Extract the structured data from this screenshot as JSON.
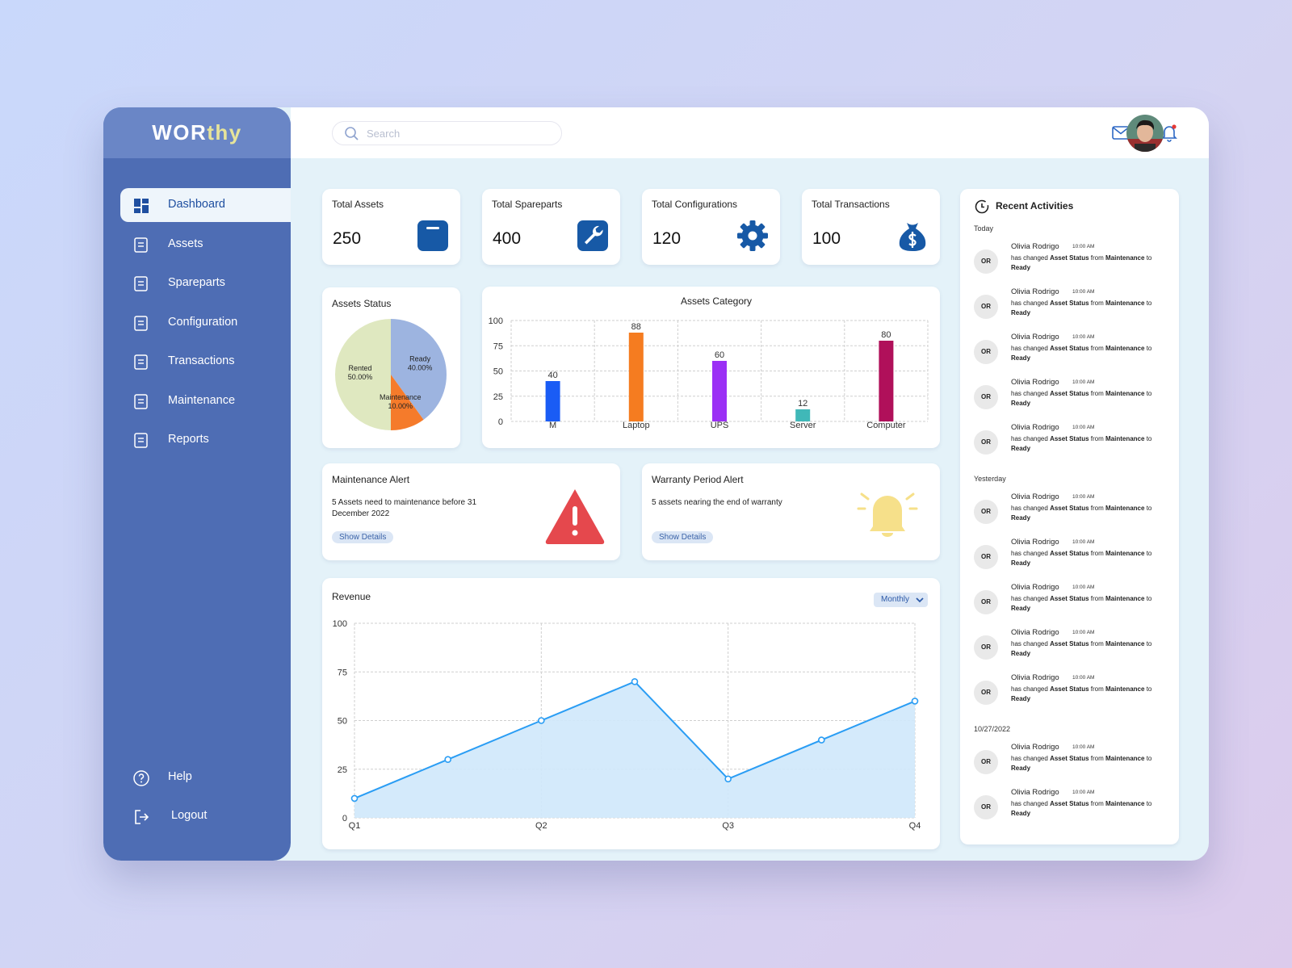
{
  "brand": {
    "main": "WOR",
    "accent": "thy"
  },
  "search_placeholder": "Search",
  "nav": {
    "active": 0,
    "main": [
      "Dashboard",
      "Assets",
      "Spareparts",
      "Configuration",
      "Transactions",
      "Maintenance",
      "Reports"
    ],
    "bottom": [
      "Help",
      "Logout"
    ]
  },
  "stats": [
    {
      "label": "Total Assets",
      "value": 250
    },
    {
      "label": "Total Spareparts",
      "value": 400
    },
    {
      "label": "Total Configurations",
      "value": 120
    },
    {
      "label": "Total Transactions",
      "value": 100
    }
  ],
  "chart_data": [
    {
      "type": "pie",
      "title": "Assets Status",
      "categories": [
        "Ready",
        "Maintenance",
        "Rented"
      ],
      "values": [
        40,
        10,
        50
      ],
      "value_labels": [
        "40.00%",
        "10.00%",
        "50.00%"
      ],
      "colors": [
        "#9db4e0",
        "#f57b2b",
        "#dfe8c0"
      ]
    },
    {
      "type": "bar",
      "title": "Assets Category",
      "categories": [
        "M",
        "Laptop",
        "UPS",
        "Server",
        "Computer"
      ],
      "values": [
        40,
        88,
        60,
        12,
        80
      ],
      "colors": [
        "#1a5cf5",
        "#f57c20",
        "#9b30f5",
        "#40b8b8",
        "#b0105a"
      ],
      "ylim": [
        0,
        100
      ],
      "yticks": [
        0,
        25,
        50,
        75,
        100
      ],
      "grid": true
    },
    {
      "type": "line",
      "title": "Revenue",
      "period_selector": "Monthly",
      "categories": [
        "Q1",
        null,
        "Q2",
        null,
        "Q3",
        null,
        "Q4"
      ],
      "values": [
        10,
        30,
        50,
        70,
        20,
        40,
        60
      ],
      "color": "#2a9df4",
      "area_color": "#cfe8fb",
      "ylim": [
        0,
        100
      ],
      "yticks": [
        0,
        25,
        50,
        75,
        100
      ],
      "grid": true
    }
  ],
  "alerts": [
    {
      "title": "Maintenance Alert",
      "text": "5 Assets need to maintenance before 31 December 2022",
      "button": "Show Details"
    },
    {
      "title": "Warranty Period Alert",
      "text": "5 assets nearing the end of warranty",
      "button": "Show Details"
    }
  ],
  "activities": {
    "title": "Recent Activities",
    "groups": [
      {
        "label": "Today",
        "items": [
          {
            "initials": "OR",
            "name": "Olivia Rodrigo",
            "time": "10:00 AM",
            "verb": "has changed",
            "field": "Asset Status",
            "from_word": "from",
            "from": "Maintenance",
            "to_word": "to",
            "to": "Ready"
          },
          {
            "initials": "OR",
            "name": "Olivia Rodrigo",
            "time": "10:00 AM",
            "verb": "has changed",
            "field": "Asset Status",
            "from_word": "from",
            "from": "Maintenance",
            "to_word": "to",
            "to": "Ready"
          },
          {
            "initials": "OR",
            "name": "Olivia Rodrigo",
            "time": "10:00 AM",
            "verb": "has changed",
            "field": "Asset Status",
            "from_word": "from",
            "from": "Maintenance",
            "to_word": "to",
            "to": "Ready"
          },
          {
            "initials": "OR",
            "name": "Olivia Rodrigo",
            "time": "10:00 AM",
            "verb": "has changed",
            "field": "Asset Status",
            "from_word": "from",
            "from": "Maintenance",
            "to_word": "to",
            "to": "Ready"
          },
          {
            "initials": "OR",
            "name": "Olivia Rodrigo",
            "time": "10:00 AM",
            "verb": "has changed",
            "field": "Asset Status",
            "from_word": "from",
            "from": "Maintenance",
            "to_word": "to",
            "to": "Ready"
          }
        ]
      },
      {
        "label": "Yesterday",
        "items": [
          {
            "initials": "OR",
            "name": "Olivia Rodrigo",
            "time": "10:00 AM",
            "verb": "has changed",
            "field": "Asset Status",
            "from_word": "from",
            "from": "Maintenance",
            "to_word": "to",
            "to": "Ready"
          },
          {
            "initials": "OR",
            "name": "Olivia Rodrigo",
            "time": "10:00 AM",
            "verb": "has changed",
            "field": "Asset Status",
            "from_word": "from",
            "from": "Maintenance",
            "to_word": "to",
            "to": "Ready"
          },
          {
            "initials": "OR",
            "name": "Olivia Rodrigo",
            "time": "10:00 AM",
            "verb": "has changed",
            "field": "Asset Status",
            "from_word": "from",
            "from": "Maintenance",
            "to_word": "to",
            "to": "Ready"
          },
          {
            "initials": "OR",
            "name": "Olivia Rodrigo",
            "time": "10:00 AM",
            "verb": "has changed",
            "field": "Asset Status",
            "from_word": "from",
            "from": "Maintenance",
            "to_word": "to",
            "to": "Ready"
          },
          {
            "initials": "OR",
            "name": "Olivia Rodrigo",
            "time": "10:00 AM",
            "verb": "has changed",
            "field": "Asset Status",
            "from_word": "from",
            "from": "Maintenance",
            "to_word": "to",
            "to": "Ready"
          }
        ]
      },
      {
        "label": "10/27/2022",
        "items": [
          {
            "initials": "OR",
            "name": "Olivia Rodrigo",
            "time": "10:00 AM",
            "verb": "has changed",
            "field": "Asset Status",
            "from_word": "from",
            "from": "Maintenance",
            "to_word": "to",
            "to": "Ready"
          },
          {
            "initials": "OR",
            "name": "Olivia Rodrigo",
            "time": "10:00 AM",
            "verb": "has changed",
            "field": "Asset Status",
            "from_word": "from",
            "from": "Maintenance",
            "to_word": "to",
            "to": "Ready"
          }
        ]
      }
    ]
  }
}
